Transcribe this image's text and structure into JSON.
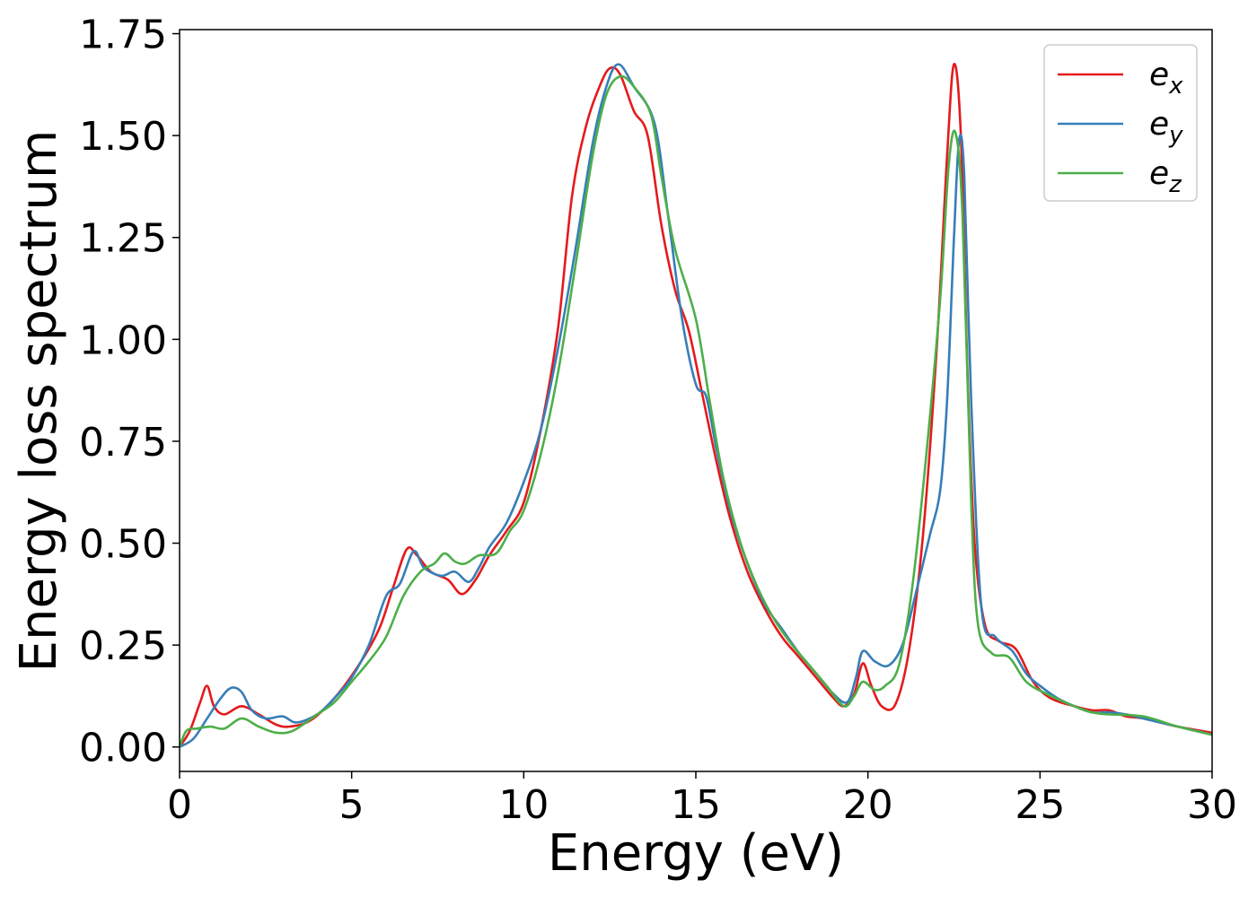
{
  "chart_data": {
    "type": "line",
    "title": "",
    "xlabel": "Energy (eV)",
    "ylabel": "Energy loss spectrum",
    "xlim": [
      0,
      30
    ],
    "ylim": [
      -0.06,
      1.76
    ],
    "xticks": [
      0,
      5,
      10,
      15,
      20,
      25,
      30
    ],
    "yticks": [
      0.0,
      0.25,
      0.5,
      0.75,
      1.0,
      1.25,
      1.5,
      1.75
    ],
    "xtick_labels": [
      "0",
      "5",
      "10",
      "15",
      "20",
      "25",
      "30"
    ],
    "ytick_labels": [
      "0.00",
      "0.25",
      "0.50",
      "0.75",
      "1.00",
      "1.25",
      "1.50",
      "1.75"
    ],
    "grid": false,
    "legend_position": "top-right",
    "series": [
      {
        "name": "e_x",
        "legend_base": "e",
        "legend_sub": "x",
        "color": "#e41a1c",
        "points": [
          [
            0,
            0.0
          ],
          [
            0.3,
            0.04
          ],
          [
            0.6,
            0.11
          ],
          [
            0.8,
            0.15
          ],
          [
            1.0,
            0.1
          ],
          [
            1.3,
            0.08
          ],
          [
            1.8,
            0.1
          ],
          [
            2.3,
            0.08
          ],
          [
            2.8,
            0.055
          ],
          [
            3.2,
            0.05
          ],
          [
            3.8,
            0.065
          ],
          [
            4.5,
            0.12
          ],
          [
            5.2,
            0.2
          ],
          [
            5.8,
            0.29
          ],
          [
            6.2,
            0.39
          ],
          [
            6.6,
            0.485
          ],
          [
            6.9,
            0.47
          ],
          [
            7.3,
            0.43
          ],
          [
            7.8,
            0.41
          ],
          [
            8.2,
            0.375
          ],
          [
            8.6,
            0.41
          ],
          [
            9.0,
            0.47
          ],
          [
            9.5,
            0.53
          ],
          [
            10.0,
            0.6
          ],
          [
            10.5,
            0.78
          ],
          [
            11.0,
            1.03
          ],
          [
            11.4,
            1.35
          ],
          [
            11.8,
            1.52
          ],
          [
            12.2,
            1.62
          ],
          [
            12.5,
            1.665
          ],
          [
            12.8,
            1.65
          ],
          [
            13.2,
            1.56
          ],
          [
            13.6,
            1.5
          ],
          [
            14.0,
            1.28
          ],
          [
            14.4,
            1.12
          ],
          [
            14.8,
            1.02
          ],
          [
            15.2,
            0.86
          ],
          [
            15.6,
            0.7
          ],
          [
            16.0,
            0.56
          ],
          [
            16.5,
            0.43
          ],
          [
            17.0,
            0.34
          ],
          [
            17.5,
            0.27
          ],
          [
            18.0,
            0.22
          ],
          [
            18.5,
            0.17
          ],
          [
            19.0,
            0.12
          ],
          [
            19.3,
            0.1
          ],
          [
            19.6,
            0.13
          ],
          [
            19.85,
            0.205
          ],
          [
            20.1,
            0.15
          ],
          [
            20.4,
            0.1
          ],
          [
            20.8,
            0.105
          ],
          [
            21.2,
            0.24
          ],
          [
            21.6,
            0.52
          ],
          [
            22.0,
            0.98
          ],
          [
            22.3,
            1.45
          ],
          [
            22.5,
            1.675
          ],
          [
            22.7,
            1.5
          ],
          [
            22.9,
            0.9
          ],
          [
            23.1,
            0.5
          ],
          [
            23.4,
            0.3
          ],
          [
            23.8,
            0.26
          ],
          [
            24.3,
            0.24
          ],
          [
            24.8,
            0.16
          ],
          [
            25.3,
            0.12
          ],
          [
            26.0,
            0.1
          ],
          [
            26.5,
            0.09
          ],
          [
            27.0,
            0.09
          ],
          [
            27.5,
            0.075
          ],
          [
            28.0,
            0.07
          ],
          [
            29.0,
            0.05
          ],
          [
            30.0,
            0.035
          ]
        ]
      },
      {
        "name": "e_y",
        "legend_base": "e",
        "legend_sub": "y",
        "color": "#377eb8",
        "points": [
          [
            0,
            0.0
          ],
          [
            0.4,
            0.02
          ],
          [
            0.8,
            0.07
          ],
          [
            1.2,
            0.12
          ],
          [
            1.5,
            0.145
          ],
          [
            1.8,
            0.135
          ],
          [
            2.1,
            0.09
          ],
          [
            2.5,
            0.07
          ],
          [
            3.0,
            0.075
          ],
          [
            3.4,
            0.06
          ],
          [
            4.0,
            0.08
          ],
          [
            4.5,
            0.12
          ],
          [
            5.0,
            0.17
          ],
          [
            5.5,
            0.25
          ],
          [
            6.0,
            0.37
          ],
          [
            6.4,
            0.4
          ],
          [
            6.8,
            0.48
          ],
          [
            7.1,
            0.44
          ],
          [
            7.6,
            0.42
          ],
          [
            8.0,
            0.43
          ],
          [
            8.4,
            0.405
          ],
          [
            8.7,
            0.44
          ],
          [
            9.0,
            0.49
          ],
          [
            9.5,
            0.55
          ],
          [
            10.0,
            0.65
          ],
          [
            10.5,
            0.78
          ],
          [
            11.0,
            0.98
          ],
          [
            11.5,
            1.22
          ],
          [
            12.0,
            1.48
          ],
          [
            12.4,
            1.62
          ],
          [
            12.75,
            1.675
          ],
          [
            13.2,
            1.62
          ],
          [
            13.8,
            1.53
          ],
          [
            14.2,
            1.3
          ],
          [
            14.6,
            1.05
          ],
          [
            15.0,
            0.89
          ],
          [
            15.3,
            0.86
          ],
          [
            15.6,
            0.73
          ],
          [
            16.0,
            0.58
          ],
          [
            16.5,
            0.45
          ],
          [
            17.0,
            0.35
          ],
          [
            17.5,
            0.29
          ],
          [
            18.0,
            0.23
          ],
          [
            18.5,
            0.18
          ],
          [
            19.0,
            0.13
          ],
          [
            19.4,
            0.11
          ],
          [
            19.65,
            0.17
          ],
          [
            19.85,
            0.235
          ],
          [
            20.2,
            0.21
          ],
          [
            20.6,
            0.2
          ],
          [
            21.0,
            0.25
          ],
          [
            21.4,
            0.38
          ],
          [
            21.8,
            0.52
          ],
          [
            22.1,
            0.63
          ],
          [
            22.3,
            0.85
          ],
          [
            22.5,
            1.25
          ],
          [
            22.65,
            1.49
          ],
          [
            22.8,
            1.4
          ],
          [
            23.0,
            0.85
          ],
          [
            23.3,
            0.34
          ],
          [
            23.7,
            0.27
          ],
          [
            24.2,
            0.235
          ],
          [
            24.6,
            0.18
          ],
          [
            25.0,
            0.15
          ],
          [
            25.5,
            0.12
          ],
          [
            26.0,
            0.1
          ],
          [
            26.5,
            0.085
          ],
          [
            27.0,
            0.085
          ],
          [
            27.5,
            0.08
          ],
          [
            28.0,
            0.07
          ],
          [
            29.0,
            0.05
          ],
          [
            30.0,
            0.03
          ]
        ]
      },
      {
        "name": "e_z",
        "legend_base": "e",
        "legend_sub": "z",
        "color": "#4daf4a",
        "points": [
          [
            0,
            0.0
          ],
          [
            0.2,
            0.04
          ],
          [
            0.5,
            0.045
          ],
          [
            0.9,
            0.05
          ],
          [
            1.3,
            0.045
          ],
          [
            1.8,
            0.07
          ],
          [
            2.3,
            0.05
          ],
          [
            2.8,
            0.035
          ],
          [
            3.3,
            0.04
          ],
          [
            4.0,
            0.08
          ],
          [
            4.5,
            0.11
          ],
          [
            5.0,
            0.16
          ],
          [
            5.5,
            0.21
          ],
          [
            6.0,
            0.27
          ],
          [
            6.5,
            0.37
          ],
          [
            7.0,
            0.43
          ],
          [
            7.4,
            0.45
          ],
          [
            7.7,
            0.475
          ],
          [
            8.0,
            0.455
          ],
          [
            8.3,
            0.45
          ],
          [
            8.7,
            0.47
          ],
          [
            9.2,
            0.475
          ],
          [
            9.6,
            0.53
          ],
          [
            10.0,
            0.58
          ],
          [
            10.5,
            0.72
          ],
          [
            11.0,
            0.92
          ],
          [
            11.5,
            1.18
          ],
          [
            12.0,
            1.45
          ],
          [
            12.4,
            1.6
          ],
          [
            12.8,
            1.645
          ],
          [
            13.2,
            1.62
          ],
          [
            13.7,
            1.55
          ],
          [
            14.0,
            1.4
          ],
          [
            14.4,
            1.22
          ],
          [
            15.0,
            1.05
          ],
          [
            15.4,
            0.85
          ],
          [
            15.8,
            0.66
          ],
          [
            16.3,
            0.5
          ],
          [
            16.8,
            0.39
          ],
          [
            17.3,
            0.31
          ],
          [
            17.8,
            0.25
          ],
          [
            18.3,
            0.2
          ],
          [
            18.8,
            0.15
          ],
          [
            19.3,
            0.1
          ],
          [
            19.6,
            0.125
          ],
          [
            19.85,
            0.16
          ],
          [
            20.2,
            0.14
          ],
          [
            20.5,
            0.15
          ],
          [
            20.9,
            0.2
          ],
          [
            21.3,
            0.4
          ],
          [
            21.7,
            0.72
          ],
          [
            22.1,
            1.1
          ],
          [
            22.35,
            1.43
          ],
          [
            22.55,
            1.505
          ],
          [
            22.75,
            1.3
          ],
          [
            23.0,
            0.6
          ],
          [
            23.2,
            0.3
          ],
          [
            23.6,
            0.23
          ],
          [
            24.1,
            0.22
          ],
          [
            24.6,
            0.16
          ],
          [
            25.2,
            0.13
          ],
          [
            26.0,
            0.1
          ],
          [
            26.5,
            0.085
          ],
          [
            27.0,
            0.08
          ],
          [
            28.0,
            0.075
          ],
          [
            29.0,
            0.05
          ],
          [
            30.0,
            0.03
          ]
        ]
      }
    ]
  }
}
